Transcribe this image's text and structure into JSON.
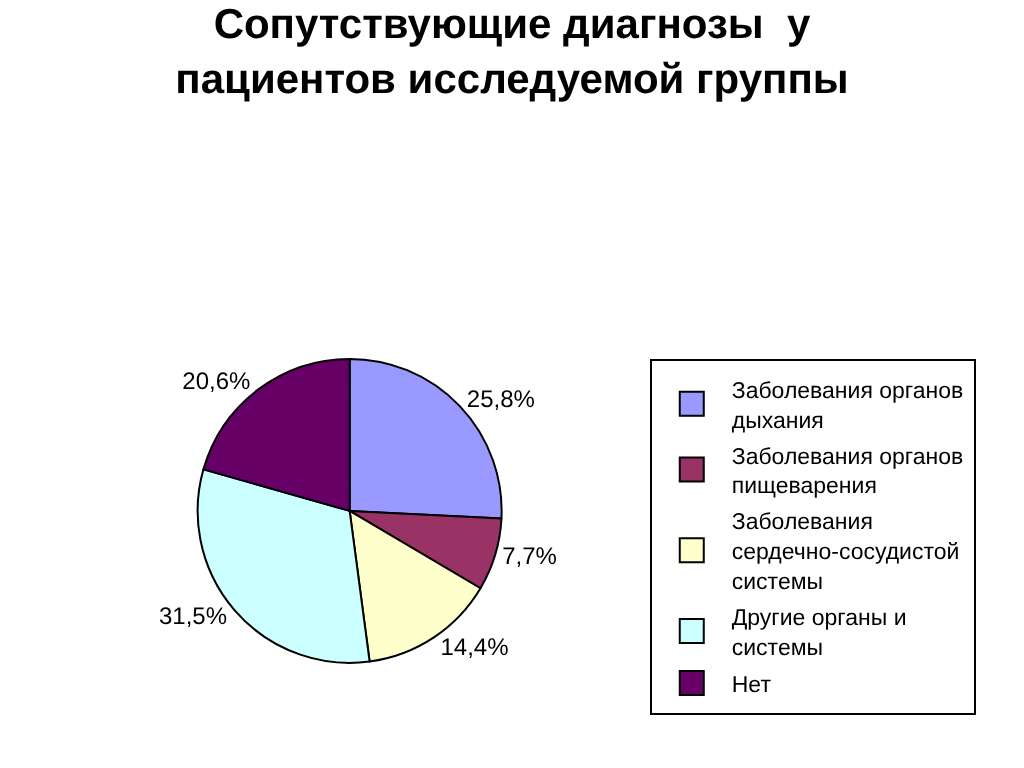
{
  "chart_data": {
    "type": "pie",
    "title": "Сопутствующие диагнозы  у пациентов исследуемой группы",
    "categories": [
      "Заболевания органов дыхания",
      "Заболевания органов пищеварения",
      "Заболевания сердечно-сосудистой системы",
      "Другие органы и системы",
      "Нет"
    ],
    "values": [
      25.8,
      7.7,
      14.4,
      31.5,
      20.6
    ],
    "value_labels": [
      "25,8%",
      "7,7%",
      "14,4%",
      "31,5%",
      "20,6%"
    ],
    "colors": [
      "#9999ff",
      "#993366",
      "#ffffcc",
      "#ccffff",
      "#660066"
    ],
    "legend": "right"
  }
}
